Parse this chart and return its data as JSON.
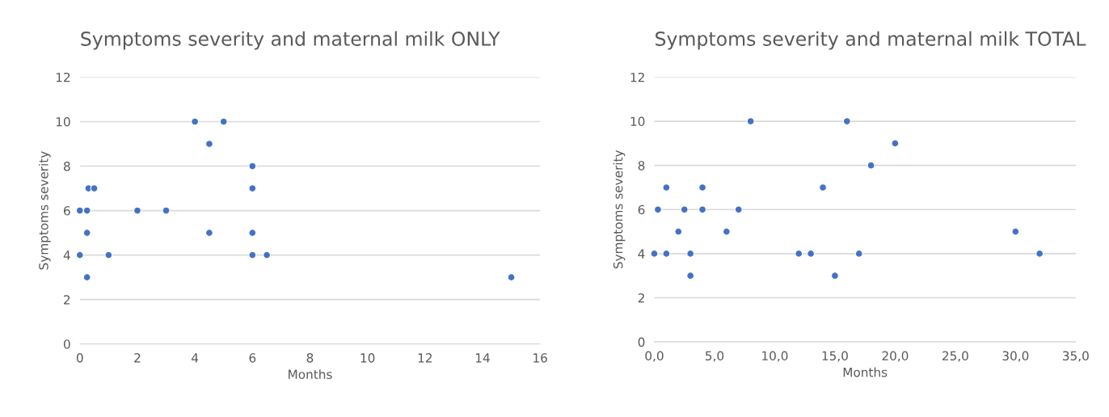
{
  "chart_data": [
    {
      "type": "scatter",
      "title": "Symptoms severity and maternal milk ONLY",
      "xlabel": "Months",
      "ylabel": "Symptoms severity",
      "color": "#4472c4",
      "marker": "circle",
      "grid": "y",
      "x": [
        4,
        5,
        4.5,
        6,
        0.3,
        0.5,
        6,
        0,
        0.25,
        2,
        3,
        0.25,
        4.5,
        6,
        0,
        1,
        6,
        6.5,
        0.25,
        15
      ],
      "values": [
        10,
        10,
        9,
        8,
        7,
        7,
        7,
        6,
        6,
        6,
        6,
        5,
        5,
        5,
        4,
        4,
        4,
        4,
        3,
        3
      ],
      "xlim": [
        0,
        16
      ],
      "xticks": [
        0,
        2,
        4,
        6,
        8,
        10,
        12,
        14,
        16
      ],
      "ylim": [
        0,
        12
      ],
      "yticks": [
        0,
        2,
        4,
        6,
        8,
        10,
        12
      ]
    },
    {
      "type": "scatter",
      "title": "Symptoms severity and maternal milk TOTAL",
      "xlabel": "Months",
      "ylabel": "Symptoms severity",
      "color": "#4472c4",
      "marker": "circle",
      "grid": "y",
      "x": [
        8,
        16,
        20,
        18,
        1,
        4,
        14,
        0.3,
        2.5,
        4,
        7,
        2,
        6,
        30,
        0,
        1,
        3,
        12,
        13,
        17,
        32,
        3,
        15
      ],
      "values": [
        10,
        10,
        9,
        8,
        7,
        7,
        7,
        6,
        6,
        6,
        6,
        5,
        5,
        5,
        4,
        4,
        4,
        4,
        4,
        4,
        4,
        3,
        3
      ],
      "xlim": [
        0,
        35
      ],
      "xticks": [
        {
          "value": 0,
          "label": "0,0"
        },
        {
          "value": 5,
          "label": "5,0"
        },
        {
          "value": 10,
          "label": "10,0"
        },
        {
          "value": 15,
          "label": "15,0"
        },
        {
          "value": 20,
          "label": "20,0"
        },
        {
          "value": 25,
          "label": "25,0"
        },
        {
          "value": 30,
          "label": "30,0"
        },
        {
          "value": 35,
          "label": "35,0"
        }
      ],
      "ylim": [
        0,
        12
      ],
      "yticks": [
        0,
        2,
        4,
        6,
        8,
        10,
        12
      ]
    }
  ]
}
